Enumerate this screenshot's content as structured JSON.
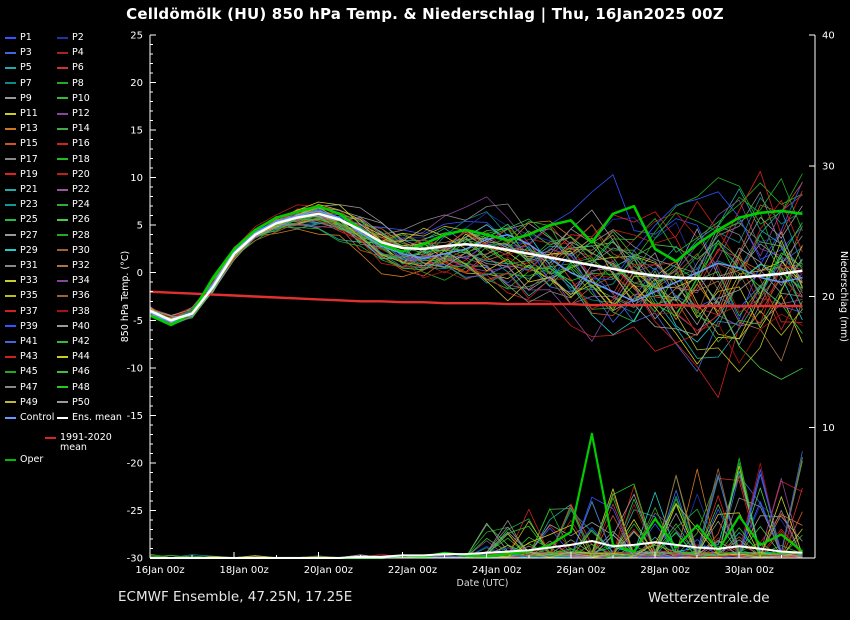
{
  "title": "Celldömölk  (HU)  850 hPa Temp. & Niederschlag | Thu, 16Jan2025 00Z",
  "footer": {
    "left": "ECMWF Ensemble, 47.25N, 17.25E",
    "right": "Wetterzentrale.de"
  },
  "axes": {
    "left_label": "850 hPa Temp. (°C)",
    "right_label": "Niederschlag (mm)",
    "x_label": "Date (UTC)",
    "temp_ticks": [
      25,
      20,
      15,
      10,
      5,
      0,
      -5,
      -10,
      -15,
      -20,
      -25,
      -30
    ],
    "precip_ticks": [
      40,
      30,
      20,
      10
    ],
    "x_tick_days": [
      0,
      2,
      4,
      6,
      8,
      10,
      12,
      14
    ],
    "x_tick_labels": [
      "16Jan 00z",
      "18Jan 00z",
      "20Jan 00z",
      "22Jan 00z",
      "24Jan 00z",
      "26Jan 00z",
      "28Jan 00z",
      "30Jan 00z"
    ],
    "temp_range": [
      -30,
      25
    ],
    "precip_range": [
      0,
      40
    ],
    "x_range_days": [
      0,
      15.8
    ]
  },
  "legend": {
    "member_labels": [
      "P1",
      "P2",
      "P3",
      "P4",
      "P5",
      "P6",
      "P7",
      "P8",
      "P9",
      "P10",
      "P11",
      "P12",
      "P13",
      "P14",
      "P15",
      "P16",
      "P17",
      "P18",
      "P19",
      "P20",
      "P21",
      "P22",
      "P23",
      "P24",
      "P25",
      "P26",
      "P27",
      "P28",
      "P29",
      "P30",
      "P31",
      "P32",
      "P33",
      "P34",
      "P35",
      "P36",
      "P37",
      "P38",
      "P39",
      "P40",
      "P41",
      "P42",
      "P43",
      "P44",
      "P45",
      "P46",
      "P47",
      "P48",
      "P49",
      "P50"
    ],
    "member_colors": [
      "#3355ff",
      "#2233aa",
      "#4466dd",
      "#aa2222",
      "#22aaaa",
      "#cc3333",
      "#118888",
      "#22aa22",
      "#999999",
      "#33bb33",
      "#cccc22",
      "#884499",
      "#cc7722",
      "#44aa44",
      "#cc5522",
      "#cc2222",
      "#888888",
      "#22bb22",
      "#dd2222",
      "#bb2211",
      "#22aaaa",
      "#995599",
      "#119999",
      "#33aa33",
      "#22bb44",
      "#44cc44",
      "#999999",
      "#22aa22",
      "#22cccc",
      "#996633",
      "#888888",
      "#aa7744",
      "#cccc33",
      "#884499",
      "#bbbb22",
      "#996633",
      "#cc2222",
      "#aa1111",
      "#3355ff",
      "#999999",
      "#4466dd",
      "#33bb33",
      "#cc2222",
      "#cccc22",
      "#22aa22",
      "#44bb44",
      "#888888",
      "#22cc22",
      "#bbbb33",
      "#999999"
    ],
    "control": {
      "label": "Control",
      "color": "#6699ff"
    },
    "ens_mean": {
      "label": "Ens. mean",
      "color": "#ffffff"
    },
    "climate": {
      "label": "1991-2020 mean",
      "color": "#dd2222"
    },
    "oper": {
      "label": "Oper",
      "color": "#00bb00"
    }
  },
  "chart_data": {
    "type": "line",
    "title": "Celldömölk (HU) 850 hPa Temp. & Niederschlag, ECMWF Ensemble, init Thu 16Jan2025 00Z",
    "xlabel": "Date (UTC)",
    "ylabel_left": "850 hPa Temp. (°C)",
    "ylabel_right": "Niederschlag (mm)",
    "x_start": "16Jan2025 00z",
    "x_step_days": 0.5,
    "x_range_days": [
      0,
      15.8
    ],
    "ylim_temp": [
      -30,
      25
    ],
    "ylim_precip": [
      0,
      40
    ],
    "grid": false,
    "legend_position": "left",
    "series": [
      {
        "role": "ens_mean_temp",
        "name": "Ens. mean (850 hPa Temp °C)",
        "color": "#ffffff",
        "values": [
          -4.0,
          -5.0,
          -4.3,
          -1.5,
          2.0,
          4.0,
          5.2,
          5.8,
          6.2,
          5.6,
          4.5,
          3.2,
          2.6,
          2.5,
          2.8,
          3.0,
          2.8,
          2.4,
          2.0,
          1.6,
          1.2,
          0.8,
          0.4,
          0.0,
          -0.3,
          -0.5,
          -0.6,
          -0.6,
          -0.5,
          -0.3,
          -0.1,
          0.2
        ]
      },
      {
        "role": "oper_temp",
        "name": "Oper (850 hPa Temp °C)",
        "color": "#00cc00",
        "values": [
          -4.5,
          -5.5,
          -4.2,
          -0.5,
          2.5,
          4.5,
          5.8,
          6.4,
          7.0,
          6.2,
          4.6,
          3.0,
          2.2,
          3.0,
          4.0,
          4.5,
          4.0,
          3.4,
          4.0,
          5.0,
          5.5,
          3.2,
          6.2,
          7.0,
          2.5,
          1.2,
          3.0,
          4.5,
          5.8,
          6.3,
          6.5,
          6.2
        ]
      },
      {
        "role": "control_temp",
        "name": "Control (850 hPa Temp °C)",
        "color": "#6699ff",
        "values": [
          -4.2,
          -5.2,
          -4.4,
          -1.2,
          2.2,
          4.2,
          5.4,
          6.0,
          6.5,
          5.8,
          4.2,
          2.8,
          2.0,
          1.5,
          2.0,
          2.5,
          3.5,
          4.0,
          3.0,
          1.5,
          0.0,
          -1.0,
          -2.0,
          -3.0,
          -2.0,
          -1.0,
          0.0,
          1.0,
          0.5,
          -0.5,
          -1.0,
          -0.5
        ]
      },
      {
        "role": "climate_temp",
        "name": "1991-2020 mean (850 hPa Temp °C)",
        "color": "#e03030",
        "values": [
          -2.0,
          -2.1,
          -2.2,
          -2.3,
          -2.4,
          -2.5,
          -2.6,
          -2.7,
          -2.8,
          -2.9,
          -3.0,
          -3.0,
          -3.1,
          -3.1,
          -3.2,
          -3.2,
          -3.2,
          -3.3,
          -3.3,
          -3.3,
          -3.3,
          -3.4,
          -3.4,
          -3.4,
          -3.4,
          -3.4,
          -3.5,
          -3.5,
          -3.5,
          -3.5,
          -3.5,
          -3.5
        ]
      },
      {
        "role": "ens_mean_precip",
        "name": "Ens. mean (Niederschlag mm)",
        "color": "#ffffff",
        "values": [
          0,
          0,
          0,
          0,
          0,
          0,
          0,
          0,
          0,
          0,
          0.1,
          0.1,
          0.2,
          0.2,
          0.3,
          0.3,
          0.4,
          0.5,
          0.6,
          0.8,
          1.0,
          1.3,
          0.9,
          1.0,
          1.2,
          1.0,
          0.8,
          0.7,
          0.9,
          0.7,
          0.5,
          0.4
        ]
      },
      {
        "role": "oper_precip",
        "name": "Oper (Niederschlag mm)",
        "color": "#00cc00",
        "values": [
          0,
          0,
          0,
          0,
          0,
          0,
          0,
          0,
          0,
          0,
          0,
          0,
          0.2,
          0.1,
          0.4,
          0.2,
          0.1,
          0.3,
          0.5,
          1.0,
          2.0,
          9.5,
          1.0,
          0.5,
          3.0,
          0.8,
          2.5,
          0.6,
          3.2,
          1.0,
          1.8,
          0.5
        ]
      }
    ],
    "ensemble": {
      "count": 50,
      "seed": 7,
      "note": "50 perturbed members P1-P50 drawn as thin spaghetti around the ensemble mean; spread grows from ~0.3°C at init to ~8°C at day 15; precip spikes 0-10 mm appear after 24Jan",
      "temp_spread_base": 0.35,
      "temp_spread_max": 7.8,
      "spread_onset_index": 5,
      "precip_onset_index": 16,
      "precip_max": 9
    }
  }
}
